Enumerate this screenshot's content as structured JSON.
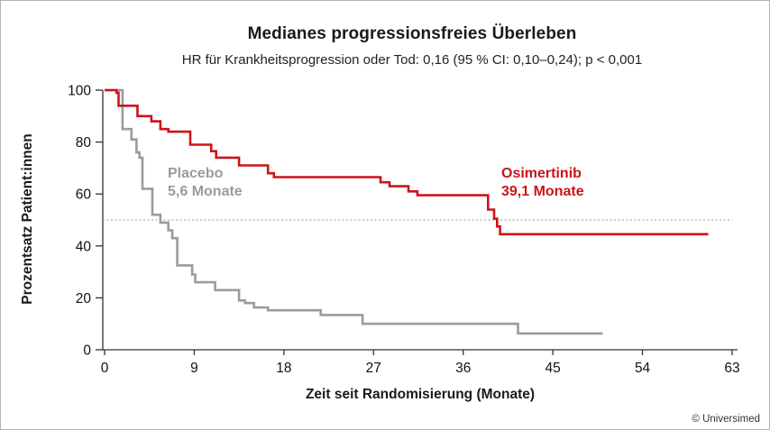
{
  "page": {
    "copyright": "© Universimed",
    "background": "#ffffff",
    "border_color": "#b3b3b3"
  },
  "chart_data": {
    "type": "line",
    "subtype": "kaplan-meier-step",
    "title": "Medianes progressionsfreies Überleben",
    "subtitle": "HR für Krankheitsprogression oder Tod: 0,16 (95 % CI: 0,10–0,24); p < 0,001",
    "xlabel": "Zeit seit Randomisierung (Monate)",
    "ylabel": "Prozentsatz Patient:innen",
    "xlim": [
      0,
      63
    ],
    "ylim": [
      0,
      100
    ],
    "x_ticks": [
      0,
      9,
      18,
      27,
      36,
      45,
      54,
      63
    ],
    "y_ticks": [
      0,
      20,
      40,
      60,
      80,
      100
    ],
    "grid": false,
    "axis_color": "#333333",
    "tick_label_color": "#111111",
    "reference_line": {
      "y": 50,
      "color": "#999999",
      "style": "dotted"
    },
    "series": [
      {
        "name": "Placebo",
        "median_label": "5,6 Monate",
        "median_months": 5.6,
        "color": "#9b9b9b",
        "end_x": 50.0,
        "steps": [
          [
            0,
            100
          ],
          [
            1.8,
            85
          ],
          [
            2.7,
            81
          ],
          [
            3.2,
            76
          ],
          [
            3.5,
            74
          ],
          [
            3.8,
            62
          ],
          [
            4.8,
            52
          ],
          [
            5.6,
            49
          ],
          [
            6.4,
            46
          ],
          [
            6.8,
            43
          ],
          [
            7.3,
            32.5
          ],
          [
            8.8,
            29
          ],
          [
            9.1,
            26
          ],
          [
            11.1,
            23
          ],
          [
            13.5,
            19
          ],
          [
            14.1,
            18
          ],
          [
            15.0,
            16.3
          ],
          [
            16.4,
            15.2
          ],
          [
            21.7,
            13.4
          ],
          [
            25.9,
            10
          ],
          [
            41.5,
            6.3
          ]
        ]
      },
      {
        "name": "Osimertinib",
        "median_label": "39,1 Monate",
        "median_months": 39.1,
        "color": "#cc1418",
        "end_x": 60.6,
        "steps": [
          [
            0,
            100
          ],
          [
            1.2,
            99
          ],
          [
            1.4,
            94
          ],
          [
            3.3,
            90
          ],
          [
            4.7,
            88
          ],
          [
            5.6,
            85
          ],
          [
            6.4,
            84
          ],
          [
            8.6,
            79
          ],
          [
            10.7,
            76.5
          ],
          [
            11.2,
            74
          ],
          [
            13.5,
            71
          ],
          [
            16.4,
            68
          ],
          [
            17.0,
            66.5
          ],
          [
            27.7,
            64.5
          ],
          [
            28.6,
            63
          ],
          [
            30.5,
            61
          ],
          [
            31.4,
            59.5
          ],
          [
            38.5,
            54
          ],
          [
            39.1,
            50.5
          ],
          [
            39.4,
            47.5
          ],
          [
            39.7,
            44.5
          ]
        ]
      }
    ]
  }
}
